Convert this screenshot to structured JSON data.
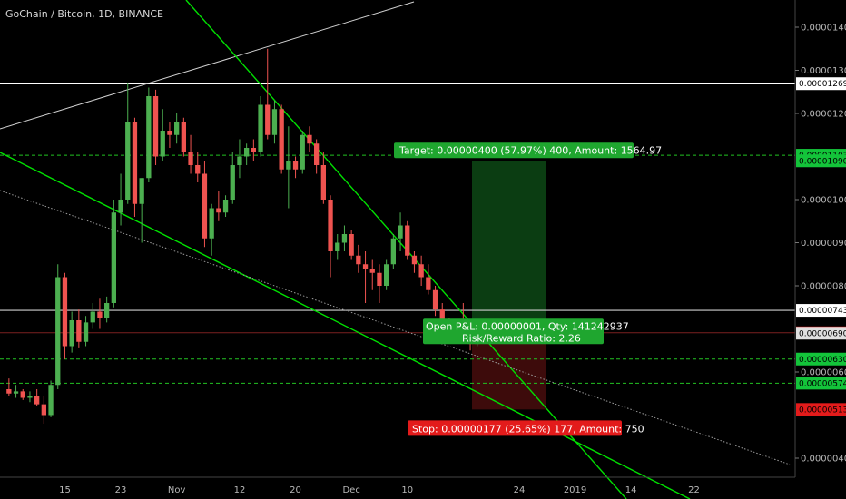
{
  "header": {
    "title": "GoChain / Bitcoin, 1D, BINANCE"
  },
  "colors": {
    "background": "#000000",
    "up": "#26a69a",
    "up_bright": "#4caf50",
    "down": "#ef5350",
    "trendline": "#00e000",
    "resistance": "#ffffff",
    "grid_dash": "#22c222",
    "entry_line": "#ef5350",
    "target_zone": "#0b3d12",
    "stop_zone": "#3d0b0b",
    "target_label_bg": "#1fa62f",
    "stop_label_bg": "#e31b1b"
  },
  "chart_data": {
    "type": "candlestick",
    "pair": "GoChain / Bitcoin",
    "timeframe": "1D",
    "exchange": "BINANCE",
    "ylim": [
      3.5e-06,
      1.498e-05
    ],
    "price_ticks": [
      "0.00001400",
      "0.00001300",
      "0.00001200",
      "0.00001000",
      "0.00000900",
      "0.00000800",
      "0.00000600",
      "0.00000400"
    ],
    "date_ticks": [
      "15",
      "23",
      "Nov",
      "12",
      "20",
      "Dec",
      "10",
      "24",
      "2019",
      "14",
      "22"
    ],
    "date_ticks_x_index": [
      8,
      16,
      24,
      33,
      41,
      49,
      57,
      73,
      81,
      89,
      98
    ],
    "badges": [
      {
        "label": "0.00001269",
        "value": 1.269e-05,
        "style": "white"
      },
      {
        "label": "0.00001103",
        "value": 1.103e-05,
        "style": "green"
      },
      {
        "label": "0.00001090",
        "value": 1.09e-05,
        "style": "green"
      },
      {
        "label": "0.00000743",
        "value": 7.43e-06,
        "style": "white"
      },
      {
        "label": "0.00000691",
        "value": 6.91e-06,
        "style": "red"
      },
      {
        "label": "0.00000690",
        "value": 6.9e-06,
        "style": "gray"
      },
      {
        "label": "0.00000630",
        "value": 6.3e-06,
        "style": "green"
      },
      {
        "label": "0.00000574",
        "value": 5.74e-06,
        "style": "green"
      },
      {
        "label": "0.00000513",
        "value": 5.13e-06,
        "style": "red"
      }
    ],
    "candles": [
      {
        "o": 5.6e-06,
        "h": 5.85e-06,
        "l": 5.45e-06,
        "c": 5.5e-06
      },
      {
        "o": 5.5e-06,
        "h": 5.7e-06,
        "l": 5.4e-06,
        "c": 5.55e-06
      },
      {
        "o": 5.55e-06,
        "h": 5.6e-06,
        "l": 5.35e-06,
        "c": 5.4e-06
      },
      {
        "o": 5.4e-06,
        "h": 5.55e-06,
        "l": 5.3e-06,
        "c": 5.45e-06
      },
      {
        "o": 5.45e-06,
        "h": 5.6e-06,
        "l": 5.2e-06,
        "c": 5.25e-06
      },
      {
        "o": 5.25e-06,
        "h": 5.45e-06,
        "l": 4.8e-06,
        "c": 5e-06
      },
      {
        "o": 5e-06,
        "h": 5.8e-06,
        "l": 4.95e-06,
        "c": 5.7e-06
      },
      {
        "o": 5.7e-06,
        "h": 8.5e-06,
        "l": 5.6e-06,
        "c": 8.2e-06
      },
      {
        "o": 8.2e-06,
        "h": 8.3e-06,
        "l": 6.3e-06,
        "c": 6.6e-06
      },
      {
        "o": 6.6e-06,
        "h": 7.4e-06,
        "l": 6.45e-06,
        "c": 7.2e-06
      },
      {
        "o": 7.2e-06,
        "h": 7.45e-06,
        "l": 6.55e-06,
        "c": 6.7e-06
      },
      {
        "o": 6.7e-06,
        "h": 7.3e-06,
        "l": 6.6e-06,
        "c": 7.15e-06
      },
      {
        "o": 7.15e-06,
        "h": 7.6e-06,
        "l": 7e-06,
        "c": 7.4e-06
      },
      {
        "o": 7.4e-06,
        "h": 7.7e-06,
        "l": 7e-06,
        "c": 7.25e-06
      },
      {
        "o": 7.25e-06,
        "h": 7.75e-06,
        "l": 7.15e-06,
        "c": 7.6e-06
      },
      {
        "o": 7.6e-06,
        "h": 1e-05,
        "l": 7.5e-06,
        "c": 9.7e-06
      },
      {
        "o": 9.7e-06,
        "h": 1.06e-05,
        "l": 9.4e-06,
        "c": 1e-05
      },
      {
        "o": 1e-05,
        "h": 1.27e-05,
        "l": 9.9e-06,
        "c": 1.18e-05
      },
      {
        "o": 1.18e-05,
        "h": 1.19e-05,
        "l": 9.6e-06,
        "c": 9.9e-06
      },
      {
        "o": 9.9e-06,
        "h": 1.05e-05,
        "l": 9e-06,
        "c": 1.05e-05
      },
      {
        "o": 1.05e-05,
        "h": 1.26e-05,
        "l": 1.04e-05,
        "c": 1.24e-05
      },
      {
        "o": 1.24e-05,
        "h": 1.255e-05,
        "l": 1.08e-05,
        "c": 1.1e-05
      },
      {
        "o": 1.1e-05,
        "h": 1.21e-05,
        "l": 1.09e-05,
        "c": 1.16e-05
      },
      {
        "o": 1.16e-05,
        "h": 1.18e-05,
        "l": 1.12e-05,
        "c": 1.15e-05
      },
      {
        "o": 1.15e-05,
        "h": 1.2e-05,
        "l": 1.13e-05,
        "c": 1.18e-05
      },
      {
        "o": 1.18e-05,
        "h": 1.19e-05,
        "l": 1.1e-05,
        "c": 1.11e-05
      },
      {
        "o": 1.11e-05,
        "h": 1.15e-05,
        "l": 1.06e-05,
        "c": 1.08e-05
      },
      {
        "o": 1.08e-05,
        "h": 1.11e-05,
        "l": 1.04e-05,
        "c": 1.06e-05
      },
      {
        "o": 1.06e-05,
        "h": 1.09e-05,
        "l": 8.9e-06,
        "c": 9.1e-06
      },
      {
        "o": 9.1e-06,
        "h": 9.9e-06,
        "l": 8.7e-06,
        "c": 9.8e-06
      },
      {
        "o": 9.8e-06,
        "h": 1.02e-05,
        "l": 9.5e-06,
        "c": 9.7e-06
      },
      {
        "o": 9.7e-06,
        "h": 1.01e-05,
        "l": 9.6e-06,
        "c": 1e-05
      },
      {
        "o": 1e-05,
        "h": 1.11e-05,
        "l": 9.9e-06,
        "c": 1.08e-05
      },
      {
        "o": 1.08e-05,
        "h": 1.14e-05,
        "l": 1.05e-05,
        "c": 1.1e-05
      },
      {
        "o": 1.1e-05,
        "h": 1.13e-05,
        "l": 1.08e-05,
        "c": 1.12e-05
      },
      {
        "o": 1.12e-05,
        "h": 1.14e-05,
        "l": 1.09e-05,
        "c": 1.11e-05
      },
      {
        "o": 1.11e-05,
        "h": 1.24e-05,
        "l": 1.1e-05,
        "c": 1.22e-05
      },
      {
        "o": 1.22e-05,
        "h": 1.35e-05,
        "l": 1.14e-05,
        "c": 1.15e-05
      },
      {
        "o": 1.15e-05,
        "h": 1.23e-05,
        "l": 1.13e-05,
        "c": 1.21e-05
      },
      {
        "o": 1.21e-05,
        "h": 1.22e-05,
        "l": 1.06e-05,
        "c": 1.07e-05
      },
      {
        "o": 1.07e-05,
        "h": 1.17e-05,
        "l": 9.8e-06,
        "c": 1.09e-05
      },
      {
        "o": 1.09e-05,
        "h": 1.1e-05,
        "l": 1.05e-05,
        "c": 1.07e-05
      },
      {
        "o": 1.07e-05,
        "h": 1.16e-05,
        "l": 1.06e-05,
        "c": 1.15e-05
      },
      {
        "o": 1.15e-05,
        "h": 1.17e-05,
        "l": 1.11e-05,
        "c": 1.13e-05
      },
      {
        "o": 1.13e-05,
        "h": 1.14e-05,
        "l": 1.06e-05,
        "c": 1.08e-05
      },
      {
        "o": 1.08e-05,
        "h": 1.11e-05,
        "l": 9.9e-06,
        "c": 1e-05
      },
      {
        "o": 1e-05,
        "h": 1.01e-05,
        "l": 8.2e-06,
        "c": 8.8e-06
      },
      {
        "o": 8.8e-06,
        "h": 9.2e-06,
        "l": 8.6e-06,
        "c": 9e-06
      },
      {
        "o": 9e-06,
        "h": 9.4e-06,
        "l": 8.8e-06,
        "c": 9.2e-06
      },
      {
        "o": 9.2e-06,
        "h": 9.3e-06,
        "l": 8.6e-06,
        "c": 8.7e-06
      },
      {
        "o": 8.7e-06,
        "h": 8.95e-06,
        "l": 8.3e-06,
        "c": 8.5e-06
      },
      {
        "o": 8.5e-06,
        "h": 8.8e-06,
        "l": 7.6e-06,
        "c": 8.4e-06
      },
      {
        "o": 8.4e-06,
        "h": 8.6e-06,
        "l": 7.9e-06,
        "c": 8.3e-06
      },
      {
        "o": 8.3e-06,
        "h": 8.5e-06,
        "l": 7.6e-06,
        "c": 8e-06
      },
      {
        "o": 8e-06,
        "h": 8.6e-06,
        "l": 7.9e-06,
        "c": 8.5e-06
      },
      {
        "o": 8.5e-06,
        "h": 9.2e-06,
        "l": 8.4e-06,
        "c": 9.1e-06
      },
      {
        "o": 9.1e-06,
        "h": 9.7e-06,
        "l": 8.8e-06,
        "c": 9.4e-06
      },
      {
        "o": 9.4e-06,
        "h": 9.5e-06,
        "l": 8.6e-06,
        "c": 8.7e-06
      },
      {
        "o": 8.7e-06,
        "h": 8.8e-06,
        "l": 8.3e-06,
        "c": 8.5e-06
      },
      {
        "o": 8.5e-06,
        "h": 8.7e-06,
        "l": 8e-06,
        "c": 8.2e-06
      },
      {
        "o": 8.2e-06,
        "h": 8.5e-06,
        "l": 7.8e-06,
        "c": 7.9e-06
      },
      {
        "o": 7.9e-06,
        "h": 8e-06,
        "l": 7.3e-06,
        "c": 7.45e-06
      },
      {
        "o": 7.45e-06,
        "h": 7.6e-06,
        "l": 7e-06,
        "c": 7.1e-06
      },
      {
        "o": 7.1e-06,
        "h": 7.25e-06,
        "l": 6.9e-06,
        "c": 7e-06
      },
      {
        "o": 7e-06,
        "h": 7.2e-06,
        "l": 6.8e-06,
        "c": 7.05e-06
      },
      {
        "o": 7.05e-06,
        "h": 7.6e-06,
        "l": 6.9e-06,
        "c": 7e-06
      },
      {
        "o": 7e-06,
        "h": 7.1e-06,
        "l": 6.5e-06,
        "c": 6.65e-06
      },
      {
        "o": 6.65e-06,
        "h": 7.2e-06,
        "l": 6.6e-06,
        "c": 6.9e-06
      }
    ],
    "overlays": {
      "target_label": "Target: 0.00000400 (57.97%) 400, Amount: 1564.97",
      "position_label_line1": "Open P&L: 0.00000001, Qty: 141242937",
      "position_label_line2": "Risk/Reward Ratio: 2.26",
      "stop_label": "Stop: 0.00000177 (25.65%) 177, Amount: 750",
      "entry_price": 6.9e-06,
      "target_price": 1.09e-05,
      "stop_price": 5.13e-06,
      "resistance_high": 1.269e-05,
      "resistance_low": 7.43e-06,
      "support_lines": [
        6.3e-06,
        5.74e-06
      ],
      "target_dashed": 1.103e-05
    }
  }
}
